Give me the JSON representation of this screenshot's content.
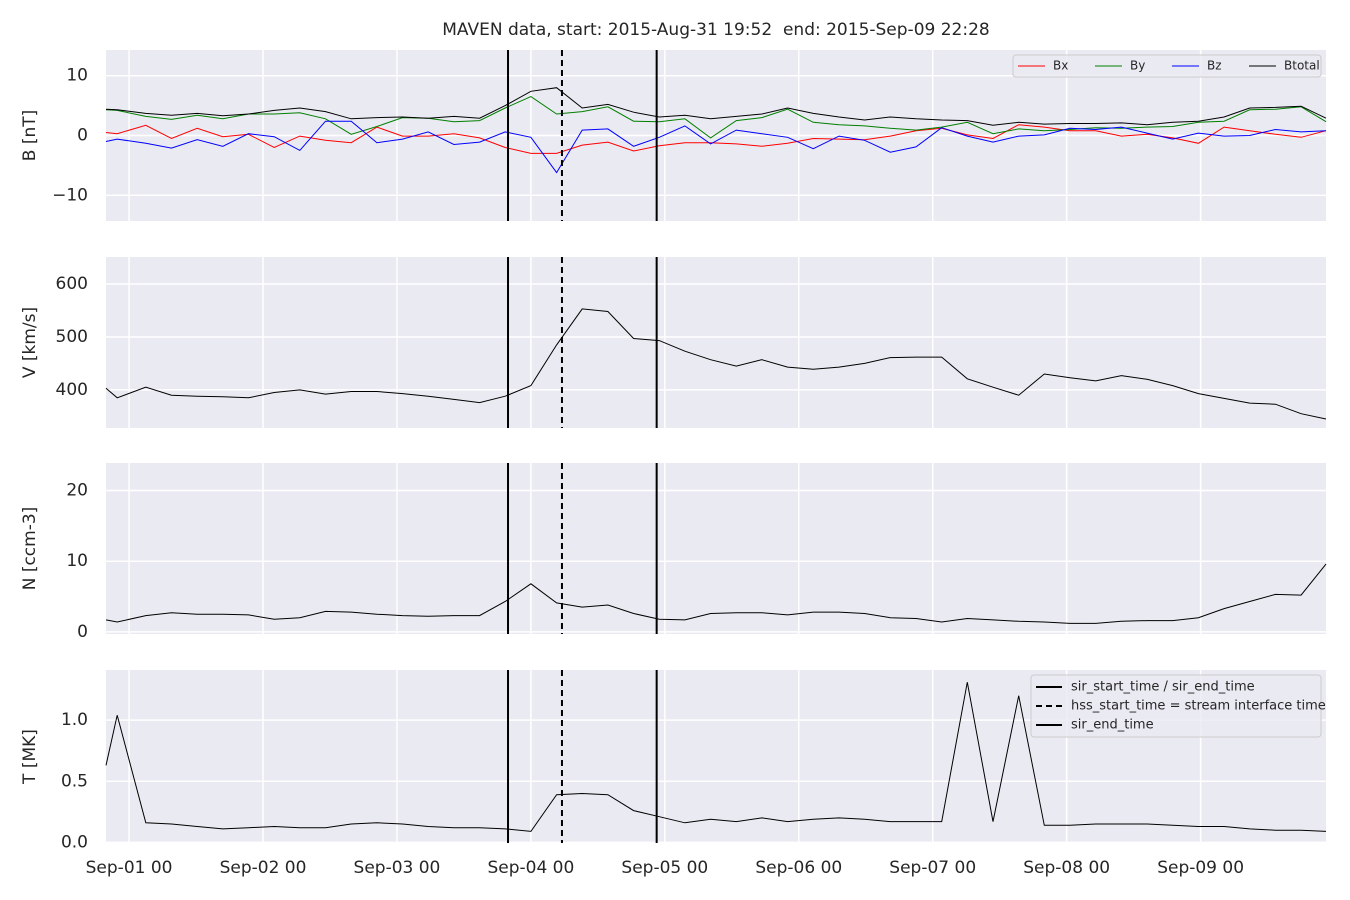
{
  "chart_data": [
    {
      "type": "line",
      "title": "MAVEN data, start: 2015-Aug-31 19:52  end: 2015-Sep-09 22:28",
      "ylabel": "B [nT]",
      "ylim": [
        -14.3,
        14.3
      ],
      "yticks": [
        {
          "value": -10,
          "label": "−10"
        },
        0,
        10
      ],
      "grid": true,
      "legend": "upper right",
      "series": [
        {
          "name": "Bx",
          "color": "#ff0000",
          "values": [
            0.5,
            0.3,
            1.7,
            -0.5,
            1.2,
            -0.2,
            0.2,
            -2.0,
            -0.1,
            -0.8,
            -1.2,
            1.4,
            -0.1,
            -0.1,
            0.3,
            -0.4,
            -2.0,
            -3.0,
            -3.0,
            -1.6,
            -1.1,
            -2.6,
            -1.7,
            -1.2,
            -1.2,
            -1.4,
            -1.8,
            -1.3,
            -0.5,
            -0.6,
            -0.7,
            -0.1,
            0.8,
            1.2,
            0.1,
            -0.5,
            1.8,
            1.4,
            0.8,
            0.8,
            -0.1,
            0.2,
            -0.4,
            -1.3,
            1.4,
            0.8,
            0.2,
            -0.3,
            0.8
          ]
        },
        {
          "name": "By",
          "color": "#008000",
          "values": [
            4.3,
            4.2,
            3.2,
            2.7,
            3.4,
            2.8,
            3.6,
            3.6,
            3.8,
            2.8,
            0.2,
            1.5,
            3.0,
            2.9,
            2.3,
            2.5,
            4.6,
            6.5,
            3.6,
            4.0,
            4.8,
            2.4,
            2.3,
            2.8,
            -0.4,
            2.5,
            3.0,
            4.4,
            2.2,
            1.8,
            1.6,
            1.2,
            0.9,
            1.4,
            2.2,
            0.3,
            1.1,
            0.8,
            1.0,
            1.3,
            1.2,
            1.4,
            1.5,
            2.2,
            2.4,
            4.3,
            4.4,
            4.8,
            2.3
          ]
        },
        {
          "name": "Bz",
          "color": "#0000ff",
          "values": [
            -1.0,
            -0.6,
            -1.3,
            -2.1,
            -0.7,
            -1.8,
            0.3,
            -0.2,
            -2.5,
            2.4,
            2.4,
            -1.2,
            -0.6,
            0.6,
            -1.5,
            -1.1,
            0.6,
            -0.3,
            -6.2,
            0.9,
            1.1,
            -1.8,
            -0.3,
            1.6,
            -1.4,
            0.9,
            0.3,
            -0.3,
            -2.2,
            -0.1,
            -0.8,
            -2.8,
            -1.9,
            1.3,
            -0.1,
            -1.1,
            -0.1,
            0.1,
            1.2,
            1.0,
            1.4,
            0.4,
            -0.6,
            0.4,
            -0.1,
            0.0,
            1.0,
            0.6,
            0.8
          ]
        },
        {
          "name": "Btotal",
          "color": "#000000",
          "values": [
            4.4,
            4.3,
            3.7,
            3.4,
            3.7,
            3.3,
            3.6,
            4.2,
            4.6,
            4.0,
            2.8,
            3.0,
            3.1,
            2.9,
            3.2,
            2.9,
            5.0,
            7.4,
            8.0,
            4.6,
            5.2,
            3.9,
            3.1,
            3.4,
            2.8,
            3.2,
            3.6,
            4.6,
            3.7,
            3.1,
            2.6,
            3.1,
            2.8,
            2.6,
            2.5,
            1.7,
            2.2,
            1.9,
            2.0,
            2.0,
            2.1,
            1.8,
            2.2,
            2.4,
            3.1,
            4.6,
            4.7,
            4.9,
            2.9
          ]
        }
      ]
    },
    {
      "type": "line",
      "ylabel": "V [km/s]",
      "ylim": [
        328,
        651
      ],
      "yticks": [
        400,
        500,
        600
      ],
      "grid": true,
      "color": "#000000",
      "values": [
        403,
        385,
        405,
        390,
        388,
        387,
        385,
        395,
        400,
        392,
        397,
        397,
        393,
        388,
        382,
        376,
        388,
        408,
        485,
        553,
        548,
        497,
        493,
        473,
        457,
        445,
        457,
        443,
        439,
        443,
        450,
        461,
        462,
        462,
        421,
        405,
        390,
        430,
        423,
        417,
        427,
        420,
        408,
        393,
        384,
        375,
        373,
        355,
        345
      ]
    },
    {
      "type": "line",
      "ylabel": "N [ccm-3]",
      "ylim": [
        -0.3,
        23.9
      ],
      "yticks": [
        0,
        10,
        20
      ],
      "grid": true,
      "color": "#000000",
      "values": [
        1.7,
        1.4,
        2.3,
        2.7,
        2.5,
        2.5,
        2.4,
        1.8,
        2.0,
        2.9,
        2.8,
        2.5,
        2.3,
        2.2,
        2.3,
        2.3,
        4.3,
        6.8,
        4.1,
        3.5,
        3.8,
        2.6,
        1.8,
        1.7,
        2.6,
        2.7,
        2.7,
        2.4,
        2.8,
        2.8,
        2.6,
        2.0,
        1.9,
        1.4,
        1.9,
        1.7,
        1.5,
        1.4,
        1.2,
        1.2,
        1.5,
        1.6,
        1.6,
        2.0,
        3.3,
        4.3,
        5.3,
        5.2,
        9.6
      ]
    },
    {
      "type": "line",
      "ylabel": "T [MK]",
      "ylim": [
        -0.005,
        1.41
      ],
      "yticks": [
        {
          "value": 0,
          "label": "0.0"
        },
        0.5,
        {
          "value": 1,
          "label": "1.0"
        }
      ],
      "grid": true,
      "color": "#000000",
      "legend": "upper right",
      "values": [
        0.63,
        1.04,
        0.16,
        0.15,
        0.13,
        0.11,
        0.12,
        0.13,
        0.12,
        0.12,
        0.15,
        0.16,
        0.15,
        0.13,
        0.12,
        0.12,
        0.11,
        0.09,
        0.39,
        0.4,
        0.39,
        0.26,
        0.21,
        0.16,
        0.19,
        0.17,
        0.2,
        0.17,
        0.19,
        0.2,
        0.19,
        0.17,
        0.17,
        0.17,
        1.31,
        0.17,
        1.2,
        0.14,
        0.14,
        0.15,
        0.15,
        0.15,
        0.14,
        0.13,
        0.13,
        0.11,
        0.1,
        0.1,
        0.09
      ],
      "x": [
        "2015-08-31 19:52",
        "2015-08-31 21:52",
        "2015-09-01 03:00",
        "2015-09-01 07:36",
        "2015-09-01 12:12",
        "2015-09-01 16:48",
        "2015-09-01 21:24",
        "2015-09-02 02:00",
        "2015-09-02 06:36",
        "2015-09-02 11:12",
        "2015-09-02 15:48",
        "2015-09-02 20:24",
        "2015-09-03 01:00",
        "2015-09-03 05:36",
        "2015-09-03 10:12",
        "2015-09-03 14:48",
        "2015-09-03 19:24",
        "2015-09-04 00:00",
        "2015-09-04 04:36",
        "2015-09-04 09:12",
        "2015-09-04 13:48",
        "2015-09-04 18:24",
        "2015-09-04 23:00",
        "2015-09-05 03:36",
        "2015-09-05 08:12",
        "2015-09-05 12:48",
        "2015-09-05 17:24",
        "2015-09-05 22:00",
        "2015-09-06 02:36",
        "2015-09-06 07:12",
        "2015-09-06 11:48",
        "2015-09-06 16:24",
        "2015-09-06 21:00",
        "2015-09-07 01:36",
        "2015-09-07 06:12",
        "2015-09-07 10:48",
        "2015-09-07 15:24",
        "2015-09-07 20:00",
        "2015-09-08 00:36",
        "2015-09-08 05:12",
        "2015-09-08 09:48",
        "2015-09-08 14:24",
        "2015-09-08 19:00",
        "2015-09-08 23:36",
        "2015-09-09 04:12",
        "2015-09-09 08:48",
        "2015-09-09 13:24",
        "2015-09-09 18:00",
        "2015-09-09 22:28"
      ],
      "xlim": [
        "2015-08-31 19:52",
        "2015-09-09 22:28"
      ],
      "xticks": [
        {
          "value": "2015-09-01 00:00",
          "label": "Sep-01 00"
        },
        {
          "value": "2015-09-02 00:00",
          "label": "Sep-02 00"
        },
        {
          "value": "2015-09-03 00:00",
          "label": "Sep-03 00"
        },
        {
          "value": "2015-09-04 00:00",
          "label": "Sep-04 00"
        },
        {
          "value": "2015-09-05 00:00",
          "label": "Sep-05 00"
        },
        {
          "value": "2015-09-06 00:00",
          "label": "Sep-06 00"
        },
        {
          "value": "2015-09-07 00:00",
          "label": "Sep-07 00"
        },
        {
          "value": "2015-09-08 00:00",
          "label": "Sep-08 00"
        },
        {
          "value": "2015-09-09 00:00",
          "label": "Sep-09 00"
        }
      ],
      "vlines": [
        {
          "name": "sir_start_time / sir_end_time",
          "x": "2015-09-03 19:54",
          "style": "solid"
        },
        {
          "name": "hss_start_time = stream interface time",
          "x": "2015-09-04 05:34",
          "style": "dashed"
        },
        {
          "name": "sir_end_time",
          "x": "2015-09-04 22:32",
          "style": "solid"
        }
      ]
    }
  ]
}
